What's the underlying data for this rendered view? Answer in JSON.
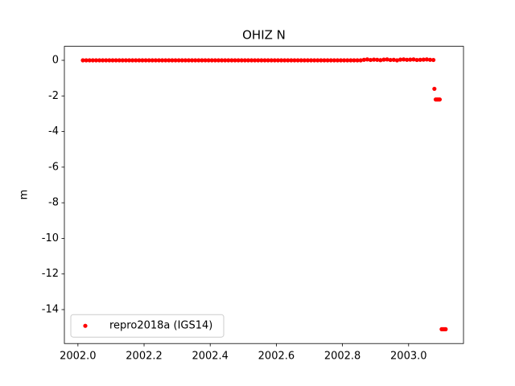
{
  "chart_data": {
    "type": "scatter",
    "title": "OHIZ N",
    "ylabel": "m",
    "x": [
      2002.015,
      2002.025,
      2002.035,
      2002.045,
      2002.055,
      2002.065,
      2002.075,
      2002.085,
      2002.095,
      2002.105,
      2002.115,
      2002.125,
      2002.135,
      2002.145,
      2002.155,
      2002.165,
      2002.175,
      2002.185,
      2002.195,
      2002.205,
      2002.215,
      2002.225,
      2002.235,
      2002.245,
      2002.255,
      2002.265,
      2002.275,
      2002.285,
      2002.295,
      2002.305,
      2002.315,
      2002.325,
      2002.335,
      2002.345,
      2002.355,
      2002.365,
      2002.375,
      2002.385,
      2002.395,
      2002.405,
      2002.415,
      2002.425,
      2002.435,
      2002.445,
      2002.455,
      2002.465,
      2002.475,
      2002.485,
      2002.495,
      2002.505,
      2002.515,
      2002.525,
      2002.535,
      2002.545,
      2002.555,
      2002.565,
      2002.575,
      2002.585,
      2002.595,
      2002.605,
      2002.615,
      2002.625,
      2002.635,
      2002.645,
      2002.655,
      2002.665,
      2002.675,
      2002.685,
      2002.695,
      2002.705,
      2002.715,
      2002.725,
      2002.735,
      2002.745,
      2002.755,
      2002.765,
      2002.775,
      2002.785,
      2002.795,
      2002.805,
      2002.815,
      2002.825,
      2002.835,
      2002.845,
      2002.855,
      2002.865,
      2002.875,
      2002.885,
      2002.895,
      2002.905,
      2002.915,
      2002.925,
      2002.935,
      2002.945,
      2002.955,
      2002.965,
      2002.975,
      2002.985,
      2002.995,
      2003.005,
      2003.015,
      2003.025,
      2003.035,
      2003.045,
      2003.055,
      2003.065,
      2003.075,
      2003.078,
      2003.082,
      2003.086,
      2003.09,
      2003.094,
      2003.1,
      2003.104,
      2003.108,
      2003.112
    ],
    "series": [
      {
        "name": "repro2018a (IGS14)",
        "color": "#ff0000",
        "values": [
          0,
          0,
          0,
          0,
          0,
          0,
          0,
          0,
          0,
          0,
          0,
          0,
          0,
          0,
          0,
          0,
          0,
          0,
          0,
          0,
          0,
          0,
          0,
          0,
          0,
          0,
          0,
          0,
          0,
          0,
          0,
          0,
          0,
          0,
          0,
          0,
          0,
          0,
          0,
          0,
          0,
          0,
          0,
          0,
          0,
          0,
          0,
          0,
          0,
          0,
          0,
          0,
          0,
          0,
          0,
          0,
          0,
          0,
          0,
          0,
          0,
          0,
          0,
          0,
          0,
          0,
          0,
          0,
          0,
          0,
          0,
          0,
          0,
          0,
          0,
          0,
          0,
          0,
          0,
          0,
          0,
          0,
          0,
          0,
          0,
          0.03,
          0.05,
          0.02,
          0.04,
          0.03,
          0.01,
          0.04,
          0.05,
          0.02,
          0.03,
          0,
          0.04,
          0.05,
          0.03,
          0.04,
          0.05,
          0.02,
          0.03,
          0.04,
          0.05,
          0.03,
          0.02,
          -1.6,
          -2.2,
          -2.2,
          -2.2,
          -2.2,
          -15.1,
          -15.1,
          -15.1,
          -15.1
        ]
      }
    ],
    "xlim": [
      2001.959,
      2003.166
    ],
    "ylim": [
      -15.906,
      0.786
    ],
    "xticks": [
      {
        "value": 2002.0,
        "label": "2002.0"
      },
      2002.2,
      2002.4,
      2002.6,
      2002.8,
      {
        "value": 2003.0,
        "label": "2003.0"
      }
    ],
    "yticks": [
      0,
      -2,
      -4,
      -6,
      -8,
      -10,
      -12,
      -14
    ],
    "legend": "lower left"
  }
}
